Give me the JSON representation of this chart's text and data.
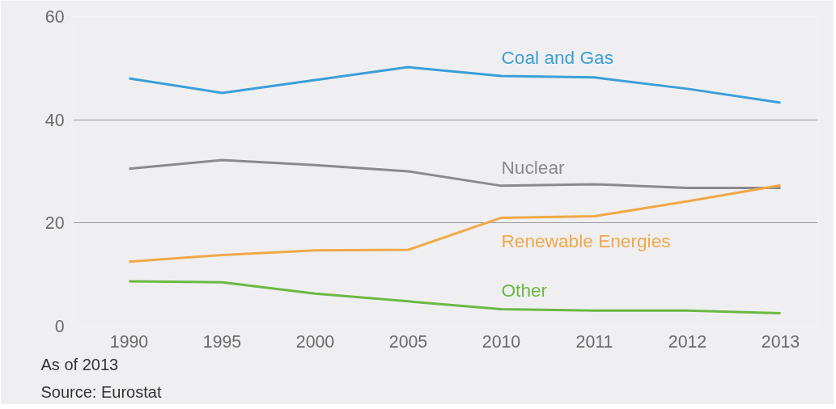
{
  "chart_data": {
    "type": "line",
    "categories": [
      "1990",
      "1995",
      "2000",
      "2005",
      "2010",
      "2011",
      "2012",
      "2013"
    ],
    "series": [
      {
        "name": "Coal and Gas",
        "color": "#3a9fd8",
        "values": [
          48,
          45.2,
          47.7,
          50.2,
          48.5,
          48.2,
          46,
          43.3
        ]
      },
      {
        "name": "Nuclear",
        "color": "#8a8a8e",
        "values": [
          30.5,
          32.2,
          31.2,
          30,
          27.2,
          27.5,
          26.8,
          26.8
        ]
      },
      {
        "name": "Renewable Energies",
        "color": "#f0a848",
        "values": [
          12.5,
          13.8,
          14.7,
          14.8,
          21,
          21.3,
          24.2,
          27.3
        ]
      },
      {
        "name": "Other",
        "color": "#6cb844",
        "values": [
          8.7,
          8.5,
          6.3,
          4.8,
          3.3,
          3,
          3,
          2.5
        ]
      }
    ],
    "ylim": [
      0,
      60
    ],
    "yticks": [
      0,
      20,
      40,
      60
    ],
    "grid": "y",
    "marker": "none",
    "line_style": "solid",
    "annotations": [
      "As of 2013",
      "Source: Eurostat"
    ]
  }
}
